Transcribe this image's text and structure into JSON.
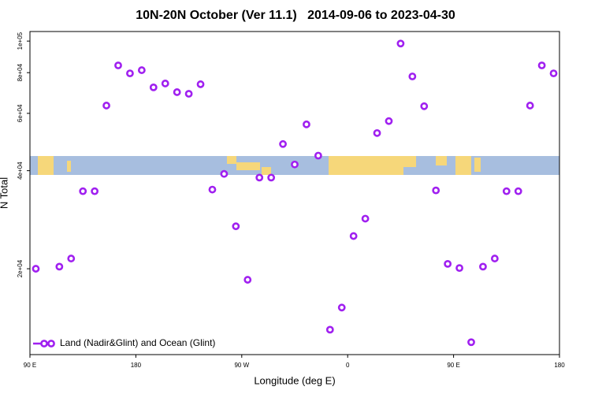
{
  "chart_data": {
    "type": "scatter",
    "title": "10N-20N October (Ver 11.1)   2014-09-06 to 2023-04-30",
    "x_label": "Longitude (deg E)",
    "y_label": "N Total",
    "xlim": [
      -270,
      180
    ],
    "xticks": [
      {
        "value": -270,
        "label": "90 E"
      },
      {
        "value": -180,
        "label": "180"
      },
      {
        "value": -90,
        "label": "90 W"
      },
      0,
      {
        "value": 90,
        "label": "90 E"
      },
      {
        "value": 180,
        "label": "180"
      }
    ],
    "ylim": [
      10900,
      107000
    ],
    "log_y": true,
    "yticks": [
      {
        "value": 20000,
        "label": "2e+04"
      },
      {
        "value": 40000,
        "label": "4e+04"
      },
      {
        "value": 60000,
        "label": "6e+04"
      },
      {
        "value": 80000,
        "label": "8e+04"
      },
      {
        "value": 100000,
        "label": "1e+05"
      }
    ],
    "legend_position": "lower left",
    "series": [
      {
        "name": "Land (Nadir&Glint) and Ocean (Glint)",
        "color": "#a020f0",
        "x": [
          -265,
          -245,
          -235,
          -225,
          -215,
          -205,
          -195,
          -185,
          -175,
          -165,
          -155,
          -145,
          -135,
          -125,
          -115,
          -105,
          -95,
          -85,
          -75,
          -65,
          -55,
          -45,
          -35,
          -25,
          -15,
          -5,
          5,
          15,
          25,
          35,
          45,
          55,
          65,
          75,
          85,
          95,
          105,
          115,
          125,
          135,
          145,
          155,
          165,
          175
        ],
        "values": [
          20000,
          20300,
          21500,
          34600,
          34600,
          63400,
          84200,
          79600,
          81400,
          72100,
          74100,
          69700,
          68900,
          73700,
          35000,
          39100,
          27000,
          18500,
          38100,
          38100,
          48300,
          41800,
          55500,
          44500,
          13000,
          15200,
          25200,
          28500,
          52200,
          56800,
          98300,
          77900,
          63100,
          34800,
          20700,
          20100,
          11900,
          20300,
          21500,
          34600,
          34600,
          63400,
          84200,
          79600
        ]
      }
    ]
  }
}
